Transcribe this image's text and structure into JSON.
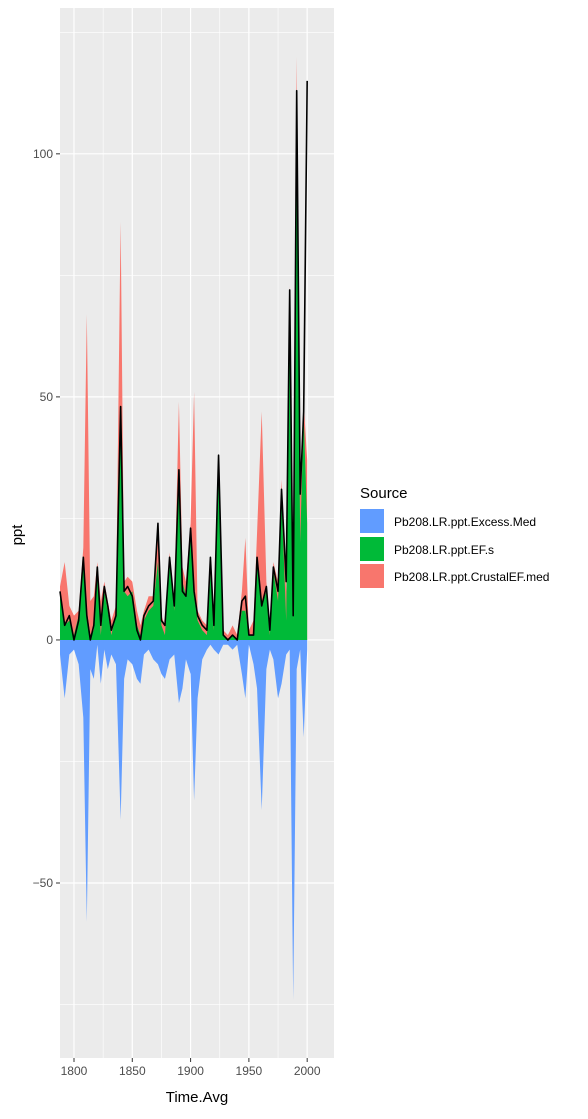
{
  "chart_data": {
    "type": "area",
    "xlabel": "Time.Avg",
    "ylabel": "ppt",
    "xlim": [
      1788,
      2023
    ],
    "ylim": [
      -86,
      130
    ],
    "x_ticks": [
      1800,
      1850,
      1900,
      1950,
      2000
    ],
    "x_tick_labels": [
      "1800",
      "1850",
      "1900",
      "1950",
      "2000"
    ],
    "y_ticks": [
      -50,
      0,
      50,
      100
    ],
    "y_tick_labels": [
      "−50",
      "0",
      "50",
      "100"
    ],
    "grid": true,
    "legend": {
      "title": "Source",
      "placement": "right",
      "entries": [
        {
          "label": "Pb208.LR.ppt.Excess.Med",
          "color": "#619CFF"
        },
        {
          "label": "Pb208.LR.ppt.EF.s",
          "color": "#00BA38"
        },
        {
          "label": "Pb208.LR.ppt.CrustalEF.med",
          "color": "#F8766D"
        }
      ]
    },
    "x": [
      1788,
      1792,
      1796,
      1800,
      1804,
      1808,
      1811,
      1814,
      1817,
      1820,
      1823,
      1826,
      1829,
      1832,
      1836,
      1840,
      1843,
      1846,
      1850,
      1854,
      1857,
      1860,
      1864,
      1868,
      1872,
      1875,
      1878,
      1882,
      1886,
      1890,
      1893,
      1896,
      1900,
      1903,
      1906,
      1910,
      1914,
      1917,
      1920,
      1924,
      1928,
      1932,
      1936,
      1940,
      1944,
      1947,
      1950,
      1954,
      1957,
      1961,
      1965,
      1968,
      1971,
      1975,
      1978,
      1982,
      1985,
      1988,
      1991,
      1994,
      1997,
      2000
    ],
    "series": [
      {
        "name": "Pb208.LR.ppt.Excess.Med",
        "color": "#619CFF",
        "values": [
          -3,
          -12,
          -3,
          -2,
          -5,
          -16,
          -58,
          -6,
          -8,
          -1,
          -9,
          -2,
          -6,
          -3,
          -5,
          -37,
          -8,
          -4,
          -5,
          -8,
          -9,
          -3,
          -2,
          -4,
          -5,
          -7,
          -8,
          -4,
          -3,
          -13,
          -10,
          -4,
          -7,
          -33,
          -12,
          -4,
          -2,
          -1,
          -2,
          -3,
          -1,
          -1,
          -2,
          -1,
          -7,
          -12,
          -1,
          -5,
          -10,
          -35,
          -6,
          -2,
          -4,
          -12,
          -9,
          -3,
          -2,
          -74,
          -6,
          -2,
          -20,
          -2
        ]
      },
      {
        "name": "Pb208.LR.ppt.EF.s",
        "color": "#00BA38",
        "values": [
          9,
          3,
          4,
          1,
          5,
          17,
          6,
          1,
          2,
          14,
          1,
          10,
          6,
          1,
          5,
          47,
          10,
          9,
          10,
          3,
          1,
          4,
          6,
          7,
          16,
          3,
          1,
          16,
          6,
          33,
          12,
          9,
          22,
          9,
          4,
          2,
          1,
          14,
          2,
          34,
          1,
          0,
          1,
          0,
          6,
          6,
          1,
          1,
          16,
          7,
          10,
          1,
          14,
          8,
          29,
          4,
          70,
          4,
          104,
          20,
          46,
          24
        ]
      },
      {
        "name": "Pb208.LR.ppt.CrustalEF.med",
        "color": "#F8766D",
        "values": [
          11,
          16,
          7,
          5,
          6,
          19,
          67,
          8,
          9,
          16,
          8,
          12,
          8,
          4,
          7,
          86,
          12,
          13,
          12,
          6,
          3,
          6,
          9,
          9,
          22,
          5,
          3,
          18,
          8,
          49,
          15,
          12,
          24,
          51,
          6,
          4,
          3,
          16,
          4,
          38,
          2,
          1,
          3,
          1,
          10,
          21,
          2,
          4,
          22,
          47,
          12,
          3,
          16,
          12,
          33,
          10,
          73,
          8,
          120,
          31,
          49,
          37
        ]
      }
    ],
    "total": [
      10,
      3,
      5,
      0,
      4,
      17,
      5,
      0,
      3,
      15,
      3,
      11,
      7,
      2,
      5,
      48,
      10,
      11,
      9,
      2,
      0,
      5,
      7,
      8,
      24,
      4,
      3,
      17,
      7,
      35,
      10,
      9,
      23,
      10,
      5,
      3,
      2,
      17,
      3,
      38,
      1,
      0,
      1,
      0,
      8,
      9,
      1,
      1,
      17,
      7,
      11,
      2,
      15,
      10,
      31,
      12,
      72,
      5,
      113,
      30,
      47,
      115
    ],
    "total_color": "#000000"
  }
}
